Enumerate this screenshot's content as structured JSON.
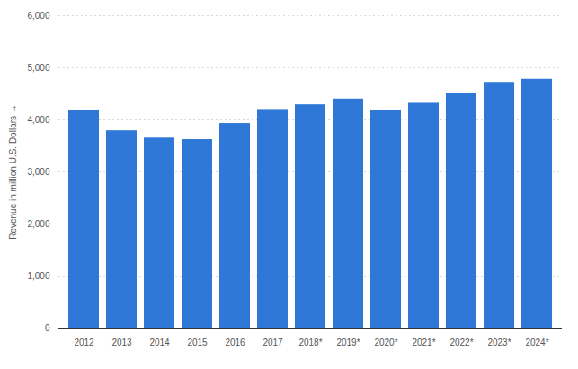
{
  "chart_data": {
    "type": "bar",
    "y_label": "Revenue in million U.S. Dollars",
    "categories": [
      "2012",
      "2013",
      "2014",
      "2015",
      "2016",
      "2017",
      "2018*",
      "2019*",
      "2020*",
      "2021*",
      "2022*",
      "2023*",
      "2024*"
    ],
    "values": [
      4190,
      3790,
      3650,
      3620,
      3930,
      4200,
      4290,
      4400,
      4190,
      4320,
      4500,
      4720,
      4780
    ],
    "color": "#2f78d8",
    "ylim": [
      0,
      6000
    ],
    "yticks": [
      0,
      {
        "value": 1000,
        "label": "1,000"
      },
      {
        "value": 2000,
        "label": "2,000"
      },
      {
        "value": 3000,
        "label": "3,000"
      },
      {
        "value": 4000,
        "label": "4,000"
      },
      {
        "value": 5000,
        "label": "5,000"
      },
      {
        "value": 6000,
        "label": "6,000"
      }
    ],
    "grid": true
  }
}
